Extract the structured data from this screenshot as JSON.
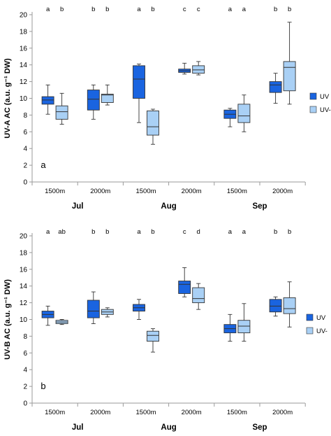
{
  "colors": {
    "uv_plus": "#1a64e0",
    "uv_minus": "#a9d0f5",
    "box_stroke": "#333333",
    "axis": "#9a9a9a",
    "text": "#000000"
  },
  "chart_data": [
    {
      "type": "box",
      "panel_label": "a",
      "ylabel": "UV-A AC (a.u. g⁻¹ DW)",
      "ylim": [
        0,
        20
      ],
      "yticks": [
        0,
        2,
        4,
        6,
        8,
        10,
        12,
        14,
        16,
        18,
        20
      ],
      "altitudes": [
        "1500m",
        "2000m",
        "1500m",
        "2000m",
        "1500m",
        "2000m"
      ],
      "months": [
        "Jul",
        "Aug",
        "Sep"
      ],
      "legend": [
        "UV",
        "UV-"
      ],
      "series": [
        {
          "name": "UV",
          "color": "#1a64e0",
          "boxes": [
            {
              "min": 8.1,
              "q1": 9.3,
              "median": 9.8,
              "q3": 10.2,
              "max": 11.6
            },
            {
              "min": 7.5,
              "q1": 8.6,
              "median": 9.9,
              "q3": 11.0,
              "max": 11.6
            },
            {
              "min": 7.1,
              "q1": 10.0,
              "median": 12.3,
              "q3": 13.9,
              "max": 14.1
            },
            {
              "min": 12.9,
              "q1": 13.1,
              "median": 13.3,
              "q3": 13.5,
              "max": 14.2
            },
            {
              "min": 6.6,
              "q1": 7.6,
              "median": 8.1,
              "q3": 8.6,
              "max": 8.8
            },
            {
              "min": 9.4,
              "q1": 10.7,
              "median": 11.6,
              "q3": 12.0,
              "max": 13.0
            }
          ],
          "letters": [
            "a",
            "b",
            "a",
            "c",
            "a",
            "b"
          ]
        },
        {
          "name": "UV-",
          "color": "#a9d0f5",
          "boxes": [
            {
              "min": 6.9,
              "q1": 7.5,
              "median": 8.4,
              "q3": 9.1,
              "max": 10.6
            },
            {
              "min": 9.2,
              "q1": 9.5,
              "median": 10.4,
              "q3": 10.5,
              "max": 11.6
            },
            {
              "min": 4.5,
              "q1": 5.6,
              "median": 6.6,
              "q3": 8.5,
              "max": 8.7
            },
            {
              "min": 12.8,
              "q1": 13.0,
              "median": 13.4,
              "q3": 13.9,
              "max": 14.4
            },
            {
              "min": 6.0,
              "q1": 7.1,
              "median": 7.9,
              "q3": 9.3,
              "max": 10.4
            },
            {
              "min": 9.3,
              "q1": 10.9,
              "median": 13.7,
              "q3": 14.4,
              "max": 19.1
            }
          ],
          "letters": [
            "b",
            "b",
            "b",
            "c",
            "a",
            "b"
          ]
        }
      ]
    },
    {
      "type": "box",
      "panel_label": "b",
      "ylabel": "UV-B AC (a.u. g⁻¹ DW)",
      "ylim": [
        0,
        20
      ],
      "yticks": [
        0,
        2,
        4,
        6,
        8,
        10,
        12,
        14,
        16,
        18,
        20
      ],
      "altitudes": [
        "1500m",
        "2000m",
        "1500m",
        "2000m",
        "1500m",
        "2000m"
      ],
      "months": [
        "Jul",
        "Aug",
        "Sep"
      ],
      "legend": [
        "UV",
        "UV-"
      ],
      "series": [
        {
          "name": "UV",
          "color": "#1a64e0",
          "boxes": [
            {
              "min": 9.3,
              "q1": 10.2,
              "median": 10.6,
              "q3": 11.0,
              "max": 11.6
            },
            {
              "min": 9.5,
              "q1": 10.2,
              "median": 11.0,
              "q3": 12.3,
              "max": 13.3
            },
            {
              "min": 10.0,
              "q1": 11.0,
              "median": 11.4,
              "q3": 11.8,
              "max": 12.4
            },
            {
              "min": 12.7,
              "q1": 13.1,
              "median": 14.2,
              "q3": 14.6,
              "max": 16.2
            },
            {
              "min": 7.4,
              "q1": 8.4,
              "median": 8.9,
              "q3": 9.4,
              "max": 10.6
            },
            {
              "min": 10.4,
              "q1": 10.9,
              "median": 11.6,
              "q3": 12.4,
              "max": 12.7
            }
          ],
          "letters": [
            "a",
            "b",
            "a",
            "c",
            "a",
            "b"
          ]
        },
        {
          "name": "UV-",
          "color": "#a9d0f5",
          "boxes": [
            {
              "min": 9.4,
              "q1": 9.5,
              "median": 9.7,
              "q3": 9.9,
              "max": 10.0
            },
            {
              "min": 10.3,
              "q1": 10.6,
              "median": 10.9,
              "q3": 11.2,
              "max": 11.4
            },
            {
              "min": 6.1,
              "q1": 7.4,
              "median": 8.1,
              "q3": 8.6,
              "max": 8.9
            },
            {
              "min": 11.2,
              "q1": 12.0,
              "median": 12.5,
              "q3": 13.8,
              "max": 14.3
            },
            {
              "min": 7.4,
              "q1": 8.4,
              "median": 9.2,
              "q3": 9.9,
              "max": 11.9
            },
            {
              "min": 9.1,
              "q1": 10.7,
              "median": 11.3,
              "q3": 12.6,
              "max": 14.5
            }
          ],
          "letters": [
            "ab",
            "b",
            "b",
            "d",
            "a",
            "b"
          ]
        }
      ]
    }
  ]
}
